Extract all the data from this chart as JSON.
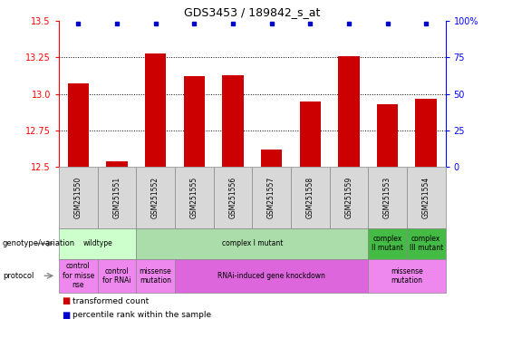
{
  "title": "GDS3453 / 189842_s_at",
  "samples": [
    "GSM251550",
    "GSM251551",
    "GSM251552",
    "GSM251555",
    "GSM251556",
    "GSM251557",
    "GSM251558",
    "GSM251559",
    "GSM251553",
    "GSM251554"
  ],
  "bar_values": [
    13.07,
    12.54,
    13.28,
    13.12,
    13.13,
    12.62,
    12.95,
    13.26,
    12.93,
    12.97
  ],
  "bar_color": "#cc0000",
  "dot_color": "#0000cc",
  "ylim_left": [
    12.5,
    13.5
  ],
  "ylim_right": [
    0,
    100
  ],
  "yticks_left": [
    12.5,
    12.75,
    13.0,
    13.25,
    13.5
  ],
  "yticks_right": [
    0,
    25,
    50,
    75,
    100
  ],
  "bar_width": 0.55,
  "genotype_specs": [
    {
      "cols": [
        0,
        1
      ],
      "color": "#ccffcc",
      "label": "wildtype"
    },
    {
      "cols": [
        2,
        3,
        4,
        5,
        6,
        7
      ],
      "color": "#aaddaa",
      "label": "complex I mutant"
    },
    {
      "cols": [
        8
      ],
      "color": "#44bb44",
      "label": "complex\nII mutant"
    },
    {
      "cols": [
        9
      ],
      "color": "#44bb44",
      "label": "complex\nIII mutant"
    }
  ],
  "protocol_specs": [
    {
      "cols": [
        0
      ],
      "color": "#ee88ee",
      "label": "control\nfor misse\nnse"
    },
    {
      "cols": [
        1
      ],
      "color": "#ee88ee",
      "label": "control\nfor RNAi"
    },
    {
      "cols": [
        2
      ],
      "color": "#ee88ee",
      "label": "missense\nmutation"
    },
    {
      "cols": [
        3,
        4,
        5,
        6,
        7
      ],
      "color": "#dd66dd",
      "label": "RNAi-induced gene knockdown"
    },
    {
      "cols": [
        8,
        9
      ],
      "color": "#ee88ee",
      "label": "missense\nmutation"
    }
  ]
}
